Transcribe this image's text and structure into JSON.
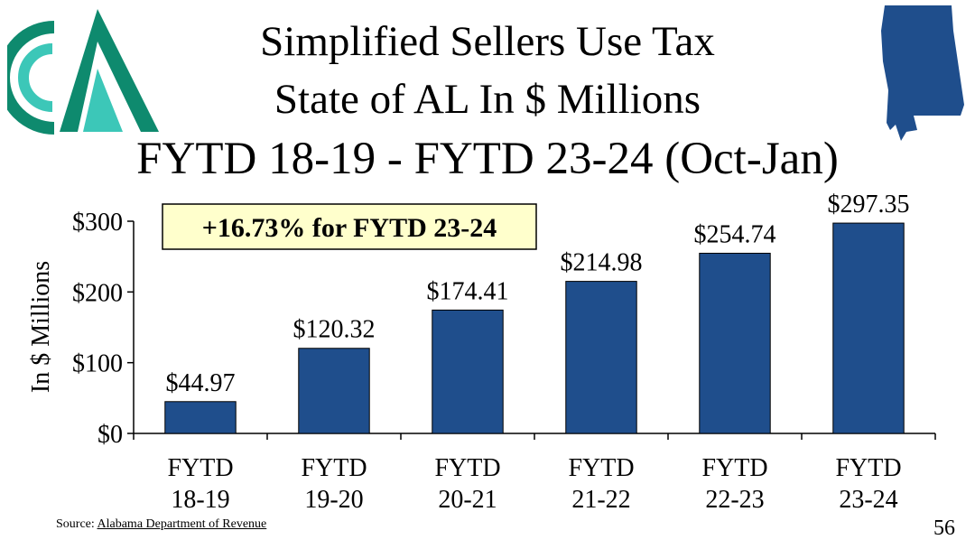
{
  "slide": {
    "title_line1": "Simplified Sellers Use Tax",
    "title_line2": "State of AL In $ Millions",
    "title_line3": "FYTD 18-19 - FYTD 23-24 (Oct-Jan)",
    "source_label": "Source:",
    "source_link": "Alabama Department of Revenue",
    "page_number": "56"
  },
  "colors": {
    "bar": "#1F4E8C",
    "callout_bg": "#FFFFCC",
    "logo_dark": "#0E8A6E",
    "logo_light": "#3CC7B8",
    "state": "#1F4E8C"
  },
  "logo": {
    "icon": "agency-logo-icon"
  },
  "state_map": {
    "icon": "alabama-map-icon"
  },
  "chart_data": {
    "type": "bar",
    "title": "Simplified Sellers Use Tax State of AL In $ Millions",
    "ylabel": "In $ Millions",
    "xlabel": "",
    "categories": [
      [
        "FYTD",
        "18-19"
      ],
      [
        "FYTD",
        "19-20"
      ],
      [
        "FYTD",
        "20-21"
      ],
      [
        "FYTD",
        "21-22"
      ],
      [
        "FYTD",
        "22-23"
      ],
      [
        "FYTD",
        "23-24"
      ]
    ],
    "values": [
      44.97,
      120.32,
      174.41,
      214.98,
      254.74,
      297.35
    ],
    "value_labels": [
      "$44.97",
      "$120.32",
      "$174.41",
      "$214.98",
      "$254.74",
      "$297.35"
    ],
    "ylim": [
      0,
      300
    ],
    "yticks": [
      0,
      100,
      200,
      300
    ],
    "ytick_labels": [
      "$0",
      "$100",
      "$200",
      "$300"
    ],
    "grid": false,
    "annotation": "+16.73% for FYTD 23-24"
  }
}
